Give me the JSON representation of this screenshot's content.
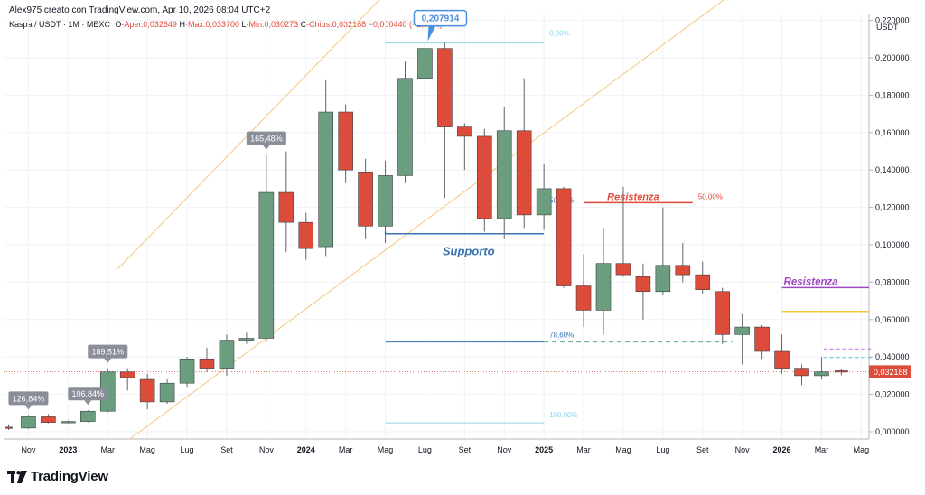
{
  "header": {
    "author_line": "Alex975 creato con TradingView.com, Apr 10, 2026 08:04 UTC+2",
    "symbol": "Kaspa / USDT · 1M · MEXC",
    "ohlc": {
      "o_label": "O",
      "o": "-Aper.0,032649",
      "h_label": "H",
      "h": "-Max.0,033700",
      "l_label": "L",
      "l": "-Min.0,030273",
      "c_label": "C",
      "c": "-Chius.0,032188",
      "chg": "−0,000440 (−1,35%)"
    }
  },
  "brand": {
    "name": "TradingView"
  },
  "chart_data": {
    "type": "candlestick",
    "currency_label": "USDT",
    "ylim": [
      -0.004,
      0.226
    ],
    "y_ticks": [
      "0,220000",
      "0,200000",
      "0,180000",
      "0,160000",
      "0,140000",
      "0,120000",
      "0,100000",
      "0,080000",
      "0,060000",
      "0,040000",
      "0,020000",
      "0,000000"
    ],
    "y_tick_values": [
      0.22,
      0.2,
      0.18,
      0.16,
      0.14,
      0.12,
      0.1,
      0.08,
      0.06,
      0.04,
      0.02,
      0.0
    ],
    "x_ticks": [
      "Nov",
      "2023",
      "Mar",
      "Mag",
      "Lug",
      "Set",
      "Nov",
      "2024",
      "Mar",
      "Mag",
      "Lug",
      "Set",
      "Nov",
      "2025",
      "Mar",
      "Mag",
      "Lug",
      "Set",
      "Nov",
      "2026",
      "Mar",
      "Mag"
    ],
    "x_tick_bold": [
      false,
      true,
      false,
      false,
      false,
      false,
      false,
      true,
      false,
      false,
      false,
      false,
      false,
      true,
      false,
      false,
      false,
      false,
      false,
      true,
      false,
      false
    ],
    "x_tick_index": [
      1,
      3,
      5,
      7,
      9,
      11,
      13,
      15,
      17,
      19,
      21,
      23,
      25,
      27,
      29,
      31,
      33,
      35,
      37,
      39,
      41,
      43
    ],
    "candles": [
      {
        "t": "Ott 2022",
        "o": 0.0025,
        "h": 0.004,
        "l": 0.001,
        "c": 0.002
      },
      {
        "t": "Nov 2022",
        "o": 0.002,
        "h": 0.009,
        "l": 0.0015,
        "c": 0.008
      },
      {
        "t": "Dic 2022",
        "o": 0.008,
        "h": 0.0095,
        "l": 0.0045,
        "c": 0.005
      },
      {
        "t": "Gen 2023",
        "o": 0.005,
        "h": 0.006,
        "l": 0.0045,
        "c": 0.0055
      },
      {
        "t": "Feb 2023",
        "o": 0.0055,
        "h": 0.0115,
        "l": 0.005,
        "c": 0.011
      },
      {
        "t": "Mar 2023",
        "o": 0.011,
        "h": 0.034,
        "l": 0.0105,
        "c": 0.032
      },
      {
        "t": "Apr 2023",
        "o": 0.032,
        "h": 0.034,
        "l": 0.022,
        "c": 0.029
      },
      {
        "t": "Mag 2023",
        "o": 0.028,
        "h": 0.031,
        "l": 0.012,
        "c": 0.016
      },
      {
        "t": "Giu 2023",
        "o": 0.016,
        "h": 0.028,
        "l": 0.015,
        "c": 0.026
      },
      {
        "t": "Lug 2023",
        "o": 0.026,
        "h": 0.04,
        "l": 0.024,
        "c": 0.039
      },
      {
        "t": "Ago 2023",
        "o": 0.039,
        "h": 0.045,
        "l": 0.032,
        "c": 0.034
      },
      {
        "t": "Set 2023",
        "o": 0.034,
        "h": 0.052,
        "l": 0.03,
        "c": 0.049
      },
      {
        "t": "Ott 2023",
        "o": 0.049,
        "h": 0.053,
        "l": 0.047,
        "c": 0.05
      },
      {
        "t": "Nov 2023",
        "o": 0.05,
        "h": 0.148,
        "l": 0.048,
        "c": 0.128
      },
      {
        "t": "Dic 2023",
        "o": 0.128,
        "h": 0.15,
        "l": 0.096,
        "c": 0.112
      },
      {
        "t": "Gen 2024",
        "o": 0.112,
        "h": 0.117,
        "l": 0.092,
        "c": 0.098
      },
      {
        "t": "Feb 2024",
        "o": 0.099,
        "h": 0.188,
        "l": 0.094,
        "c": 0.171
      },
      {
        "t": "Mar 2024",
        "o": 0.171,
        "h": 0.175,
        "l": 0.133,
        "c": 0.14
      },
      {
        "t": "Apr 2024",
        "o": 0.139,
        "h": 0.146,
        "l": 0.103,
        "c": 0.11
      },
      {
        "t": "Mag 2024",
        "o": 0.11,
        "h": 0.145,
        "l": 0.101,
        "c": 0.137
      },
      {
        "t": "Giu 2024",
        "o": 0.137,
        "h": 0.198,
        "l": 0.133,
        "c": 0.189
      },
      {
        "t": "Lug 2024",
        "o": 0.189,
        "h": 0.2079,
        "l": 0.155,
        "c": 0.205
      },
      {
        "t": "Ago 2024",
        "o": 0.205,
        "h": 0.208,
        "l": 0.125,
        "c": 0.163
      },
      {
        "t": "Set 2024",
        "o": 0.163,
        "h": 0.165,
        "l": 0.14,
        "c": 0.158
      },
      {
        "t": "Ott 2024",
        "o": 0.158,
        "h": 0.162,
        "l": 0.107,
        "c": 0.114
      },
      {
        "t": "Nov 2024",
        "o": 0.114,
        "h": 0.174,
        "l": 0.103,
        "c": 0.161
      },
      {
        "t": "Dic 2024",
        "o": 0.161,
        "h": 0.189,
        "l": 0.109,
        "c": 0.116
      },
      {
        "t": "Gen 2025",
        "o": 0.116,
        "h": 0.143,
        "l": 0.108,
        "c": 0.13
      },
      {
        "t": "Feb 2025",
        "o": 0.13,
        "h": 0.131,
        "l": 0.077,
        "c": 0.078
      },
      {
        "t": "Mar 2025",
        "o": 0.078,
        "h": 0.095,
        "l": 0.056,
        "c": 0.065
      },
      {
        "t": "Apr 2025",
        "o": 0.065,
        "h": 0.109,
        "l": 0.052,
        "c": 0.09
      },
      {
        "t": "Mag 2025",
        "o": 0.09,
        "h": 0.131,
        "l": 0.083,
        "c": 0.084
      },
      {
        "t": "Giu 2025",
        "o": 0.083,
        "h": 0.09,
        "l": 0.06,
        "c": 0.075
      },
      {
        "t": "Lug 2025",
        "o": 0.075,
        "h": 0.12,
        "l": 0.073,
        "c": 0.089
      },
      {
        "t": "Ago 2025",
        "o": 0.089,
        "h": 0.101,
        "l": 0.08,
        "c": 0.084
      },
      {
        "t": "Set 2025",
        "o": 0.084,
        "h": 0.091,
        "l": 0.074,
        "c": 0.076
      },
      {
        "t": "Ott 2025",
        "o": 0.075,
        "h": 0.077,
        "l": 0.047,
        "c": 0.052
      },
      {
        "t": "Nov 2025",
        "o": 0.052,
        "h": 0.063,
        "l": 0.036,
        "c": 0.056
      },
      {
        "t": "Dic 2025",
        "o": 0.056,
        "h": 0.057,
        "l": 0.039,
        "c": 0.043
      },
      {
        "t": "Gen 2026",
        "o": 0.043,
        "h": 0.052,
        "l": 0.031,
        "c": 0.034
      },
      {
        "t": "Feb 2026",
        "o": 0.034,
        "h": 0.036,
        "l": 0.025,
        "c": 0.03
      },
      {
        "t": "Mar 2026",
        "o": 0.03,
        "h": 0.04,
        "l": 0.028,
        "c": 0.032
      },
      {
        "t": "Apr 2026",
        "o": 0.032649,
        "h": 0.0337,
        "l": 0.030273,
        "c": 0.032188
      }
    ],
    "callouts": [
      {
        "text": "126,84%",
        "index": 1,
        "price": 0.009
      },
      {
        "text": "106,84%",
        "index": 4,
        "price": 0.0115
      },
      {
        "text": "189,51%",
        "index": 5,
        "price": 0.034
      },
      {
        "text": "165,48%",
        "index": 13,
        "price": 0.148
      }
    ],
    "high_callout": {
      "text": "0,207914",
      "index": 21,
      "price": 0.2079
    },
    "annotations": {
      "supporto": "Supporto",
      "resistenza_1": "Resistenza",
      "resistenza_2": "Resistenza"
    },
    "fib": {
      "level_0": {
        "label": "0,00%",
        "price": 0.2079
      },
      "level_50": {
        "label": "50,00%",
        "price": 0.1225
      },
      "level_50b": {
        "label": "50,00%",
        "price": 0.1214
      },
      "level_786": {
        "label": "78,60%",
        "price": 0.048
      },
      "level_100": {
        "label": "100,00%",
        "price": 0.0048
      }
    },
    "levels": {
      "support": 0.1059,
      "resistance_red": 0.1225,
      "resistance_purple": 0.0771,
      "yellow": 0.0644,
      "blue_short": 0.108,
      "pink_dashed": 0.0443,
      "cyan_dashed": 0.0397
    },
    "channel": {
      "upper": [
        {
          "index": 5.5,
          "price": 0.087
        },
        {
          "index": 19.8,
          "price": 0.243
        }
      ],
      "lower": [
        {
          "index": 6.1,
          "price": -0.004
        },
        {
          "index": 37.6,
          "price": 0.243
        }
      ]
    },
    "current_price": {
      "label": "0,032188",
      "price": 0.032188
    },
    "colors": {
      "up": "#6a9e7f",
      "down": "#dd4b3a",
      "wick": "#636468",
      "support": "#3a74b0",
      "resistance": "#dd4b3a",
      "purple": "#a048c4",
      "yellow": "#f2c744",
      "channel": "#f5c77a",
      "fib": "#8fd6e3",
      "callout_gray": "#8a8e99",
      "callout_blue": "#4a90e2",
      "price_tag": "#dd4b3a"
    }
  }
}
